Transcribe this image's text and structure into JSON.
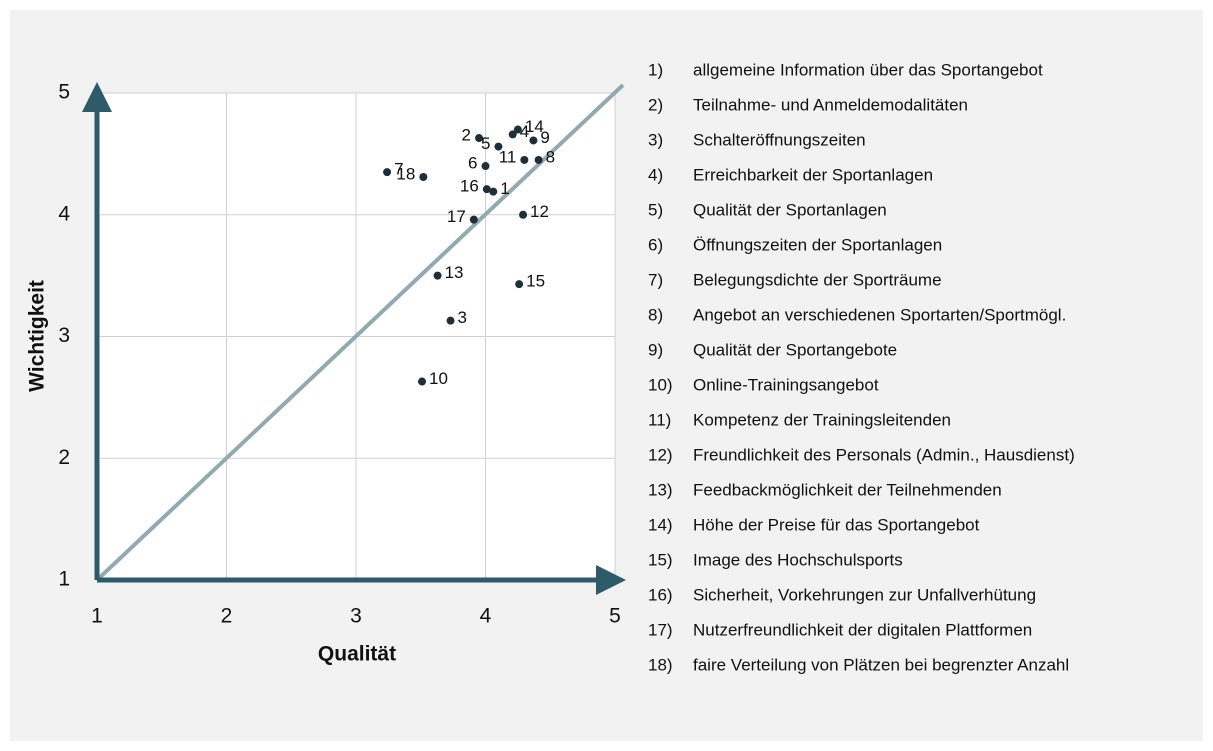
{
  "chart_data": {
    "type": "scatter",
    "xlabel": "Qualität",
    "ylabel": "Wichtigkeit",
    "xlim": [
      1,
      5
    ],
    "ylim": [
      1,
      5
    ],
    "xticks": [
      1,
      2,
      3,
      4,
      5
    ],
    "yticks": [
      1,
      2,
      3,
      4,
      5
    ],
    "grid": true,
    "color": "#1e2f3a",
    "point_labels": [
      "1",
      "2",
      "3",
      "4",
      "5",
      "6",
      "7",
      "8",
      "9",
      "10",
      "11",
      "12",
      "13",
      "14",
      "15",
      "16",
      "17",
      "18"
    ],
    "x": [
      4.06,
      3.95,
      3.73,
      4.21,
      4.1,
      4.0,
      3.24,
      4.41,
      4.37,
      3.51,
      4.3,
      4.29,
      3.63,
      4.25,
      4.26,
      4.01,
      3.91,
      3.52
    ],
    "y": [
      4.19,
      4.63,
      3.13,
      4.66,
      4.56,
      4.4,
      4.35,
      4.45,
      4.61,
      2.63,
      4.45,
      4.0,
      3.5,
      4.7,
      3.43,
      4.21,
      3.96,
      4.31
    ],
    "legend_items": [
      {
        "number": "1)",
        "text": "allgemeine Information über das Sportangebot"
      },
      {
        "number": "2)",
        "text": "Teilnahme- und Anmeldemodalitäten"
      },
      {
        "number": "3)",
        "text": "Schalteröffnungszeiten"
      },
      {
        "number": "4)",
        "text": "Erreichbarkeit der Sportanlagen"
      },
      {
        "number": "5)",
        "text": "Qualität der Sportanlagen"
      },
      {
        "number": "6)",
        "text": "Öffnungszeiten der Sportanlagen"
      },
      {
        "number": "7)",
        "text": "Belegungsdichte der Sporträume"
      },
      {
        "number": "8)",
        "text": "Angebot an verschiedenen Sportarten/Sportmögl."
      },
      {
        "number": "9)",
        "text": "Qualität der Sportangebote"
      },
      {
        "number": "10)",
        "text": "Online-Trainingsangebot"
      },
      {
        "number": "11)",
        "text": "Kompetenz der Trainingsleitenden"
      },
      {
        "number": "12)",
        "text": "Freundlichkeit des Personals (Admin., Hausdienst)"
      },
      {
        "number": "13)",
        "text": "Feedbackmöglichkeit der Teilnehmenden"
      },
      {
        "number": "14)",
        "text": "Höhe der Preise für das Sportangebot"
      },
      {
        "number": "15)",
        "text": "Image des Hochschulsports"
      },
      {
        "number": "16)",
        "text": "Sicherheit, Vorkehrungen zur Unfallverhütung"
      },
      {
        "number": "17)",
        "text": "Nutzerfreundlichkeit der digitalen Plattformen"
      },
      {
        "number": "18)",
        "text": "faire Verteilung von Plätzen bei begrenzter Anzahl"
      }
    ]
  }
}
